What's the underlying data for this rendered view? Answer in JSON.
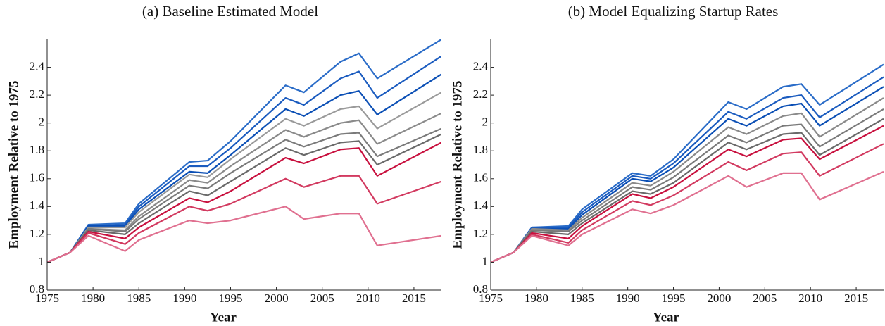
{
  "chart_data": [
    {
      "type": "line",
      "title": "(a) Baseline Estimated Model",
      "xlabel": "Year",
      "ylabel": "Employment Relative to 1975",
      "x": [
        1975,
        1977.5,
        1979.5,
        1983.5,
        1985,
        1990.5,
        1992.5,
        1995,
        2001,
        2003,
        2007,
        2009,
        2011,
        2018
      ],
      "xlim": [
        1975,
        2018
      ],
      "xticks": [
        1975,
        1980,
        1985,
        1990,
        1995,
        2000,
        2005,
        2010,
        2015
      ],
      "ylim": [
        0.8,
        2.6
      ],
      "yticks": [
        0.8,
        1,
        1.2,
        1.4,
        1.6,
        1.8,
        2,
        2.2,
        2.4
      ],
      "series": [
        {
          "color": "#2a6cc8",
          "values": [
            1.0,
            1.07,
            1.27,
            1.28,
            1.42,
            1.72,
            1.73,
            1.87,
            2.27,
            2.22,
            2.44,
            2.5,
            2.32,
            2.6
          ]
        },
        {
          "color": "#1a5bbf",
          "values": [
            1.0,
            1.07,
            1.26,
            1.27,
            1.4,
            1.69,
            1.69,
            1.82,
            2.18,
            2.13,
            2.32,
            2.37,
            2.18,
            2.48
          ]
        },
        {
          "color": "#0b4fb5",
          "values": [
            1.0,
            1.07,
            1.26,
            1.26,
            1.38,
            1.65,
            1.64,
            1.77,
            2.1,
            2.05,
            2.2,
            2.23,
            2.06,
            2.35
          ]
        },
        {
          "color": "#9a9a9a",
          "values": [
            1.0,
            1.07,
            1.25,
            1.25,
            1.36,
            1.63,
            1.61,
            1.74,
            2.03,
            1.98,
            2.1,
            2.12,
            1.96,
            2.22
          ]
        },
        {
          "color": "#8a8a8a",
          "values": [
            1.0,
            1.07,
            1.24,
            1.23,
            1.33,
            1.59,
            1.57,
            1.69,
            1.95,
            1.9,
            2.0,
            2.02,
            1.85,
            2.07
          ]
        },
        {
          "color": "#7a7a7a",
          "values": [
            1.0,
            1.07,
            1.24,
            1.22,
            1.31,
            1.55,
            1.53,
            1.64,
            1.88,
            1.83,
            1.92,
            1.93,
            1.76,
            1.96
          ]
        },
        {
          "color": "#6a6a6a",
          "values": [
            1.0,
            1.07,
            1.23,
            1.2,
            1.28,
            1.51,
            1.48,
            1.58,
            1.82,
            1.77,
            1.86,
            1.87,
            1.7,
            1.92
          ]
        },
        {
          "color": "#c8103e",
          "values": [
            1.0,
            1.07,
            1.22,
            1.17,
            1.25,
            1.46,
            1.43,
            1.51,
            1.75,
            1.71,
            1.81,
            1.82,
            1.62,
            1.86
          ]
        },
        {
          "color": "#d23a60",
          "values": [
            1.0,
            1.07,
            1.21,
            1.13,
            1.21,
            1.4,
            1.37,
            1.42,
            1.6,
            1.54,
            1.62,
            1.62,
            1.42,
            1.58
          ]
        },
        {
          "color": "#e07090",
          "values": [
            1.0,
            1.07,
            1.19,
            1.08,
            1.16,
            1.3,
            1.28,
            1.3,
            1.4,
            1.31,
            1.35,
            1.35,
            1.12,
            1.19
          ]
        }
      ]
    },
    {
      "type": "line",
      "title": "(b) Model Equalizing Startup Rates",
      "xlabel": "Year",
      "ylabel": "Employment Relative to 1975",
      "x": [
        1975,
        1977.5,
        1979.5,
        1983.5,
        1985,
        1990.5,
        1992.5,
        1995,
        2001,
        2003,
        2007,
        2009,
        2011,
        2018
      ],
      "xlim": [
        1975,
        2018
      ],
      "xticks": [
        1975,
        1980,
        1985,
        1990,
        1995,
        2000,
        2005,
        2010,
        2015
      ],
      "ylim": [
        0.8,
        2.6
      ],
      "yticks": [
        0.8,
        1,
        1.2,
        1.4,
        1.6,
        1.8,
        2,
        2.2,
        2.4
      ],
      "series": [
        {
          "color": "#2a6cc8",
          "values": [
            1.0,
            1.07,
            1.25,
            1.26,
            1.38,
            1.64,
            1.62,
            1.74,
            2.15,
            2.1,
            2.26,
            2.28,
            2.13,
            2.42
          ]
        },
        {
          "color": "#1a5bbf",
          "values": [
            1.0,
            1.07,
            1.25,
            1.25,
            1.36,
            1.62,
            1.6,
            1.71,
            2.08,
            2.03,
            2.18,
            2.2,
            2.04,
            2.33
          ]
        },
        {
          "color": "#0b4fb5",
          "values": [
            1.0,
            1.07,
            1.24,
            1.24,
            1.34,
            1.6,
            1.58,
            1.68,
            2.03,
            1.98,
            2.12,
            2.14,
            1.98,
            2.26
          ]
        },
        {
          "color": "#8a8a8a",
          "values": [
            1.0,
            1.07,
            1.24,
            1.23,
            1.32,
            1.57,
            1.55,
            1.65,
            1.97,
            1.92,
            2.05,
            2.07,
            1.9,
            2.18
          ]
        },
        {
          "color": "#7a7a7a",
          "values": [
            1.0,
            1.07,
            1.23,
            1.22,
            1.3,
            1.54,
            1.52,
            1.61,
            1.91,
            1.86,
            1.98,
            1.99,
            1.83,
            2.1
          ]
        },
        {
          "color": "#6a6a6a",
          "values": [
            1.0,
            1.07,
            1.22,
            1.2,
            1.28,
            1.51,
            1.49,
            1.57,
            1.86,
            1.81,
            1.92,
            1.93,
            1.77,
            2.03
          ]
        },
        {
          "color": "#c8103e",
          "values": [
            1.0,
            1.07,
            1.21,
            1.17,
            1.26,
            1.49,
            1.46,
            1.54,
            1.81,
            1.76,
            1.88,
            1.89,
            1.74,
            1.98
          ]
        },
        {
          "color": "#d23a60",
          "values": [
            1.0,
            1.07,
            1.2,
            1.14,
            1.23,
            1.44,
            1.41,
            1.48,
            1.72,
            1.66,
            1.78,
            1.79,
            1.62,
            1.85
          ]
        },
        {
          "color": "#e07090",
          "values": [
            1.0,
            1.07,
            1.19,
            1.12,
            1.2,
            1.38,
            1.35,
            1.41,
            1.62,
            1.54,
            1.64,
            1.64,
            1.45,
            1.65
          ]
        }
      ]
    }
  ]
}
